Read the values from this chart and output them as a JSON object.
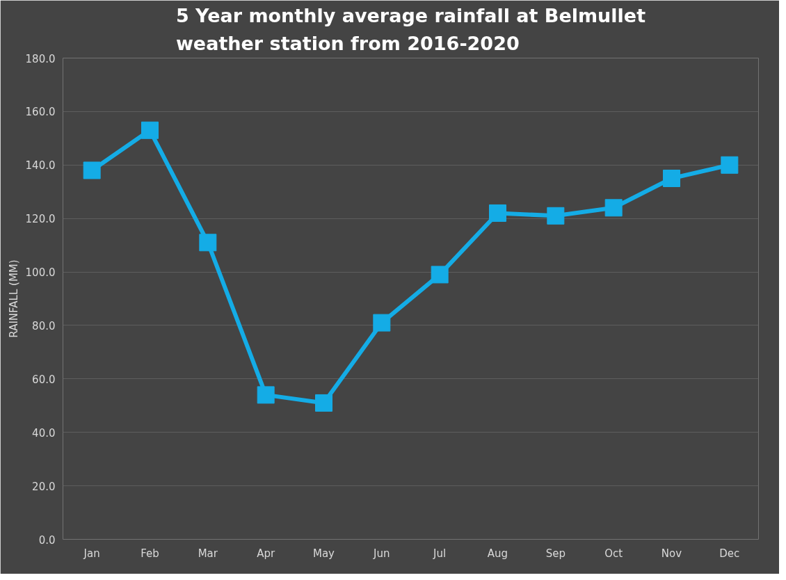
{
  "chart_data": {
    "type": "line",
    "title": "5 Year monthly average rainfall at Belmullet\nweather station from 2016-2020",
    "ylabel": "RAINFALL (MM)",
    "categories": [
      "Jan",
      "Feb",
      "Mar",
      "Apr",
      "May",
      "Jun",
      "Jul",
      "Aug",
      "Sep",
      "Oct",
      "Nov",
      "Dec"
    ],
    "series": [
      {
        "color": "#14ace6",
        "values": [
          138,
          153,
          111,
          54,
          51,
          81,
          99,
          122,
          121,
          124,
          135,
          140
        ]
      }
    ],
    "ylim": [
      0,
      180
    ],
    "yticks": [
      {
        "value": 0,
        "label": "0.0"
      },
      {
        "value": 20,
        "label": "20.0"
      },
      {
        "value": 40,
        "label": "40.0"
      },
      {
        "value": 60,
        "label": "60.0"
      },
      {
        "value": 80,
        "label": "80.0"
      },
      {
        "value": 100,
        "label": "100.0"
      },
      {
        "value": 120,
        "label": "120.0"
      },
      {
        "value": 140,
        "label": "140.0"
      },
      {
        "value": 160,
        "label": "160.0"
      },
      {
        "value": 180,
        "label": "180.0"
      }
    ],
    "grid": "y",
    "marker": "square",
    "line_style": "solid"
  }
}
